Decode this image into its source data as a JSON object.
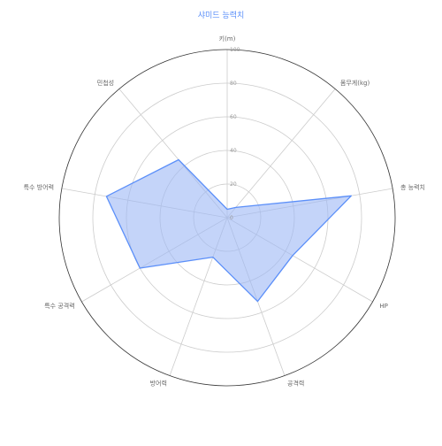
{
  "chart_data": {
    "type": "radar",
    "title": "샤미드 능력치",
    "axes": [
      "키(m)",
      "몸무게(kg)",
      "총 능력치",
      "HP",
      "공격력",
      "방어력",
      "특수 공격력",
      "특수 방어력",
      "민첩성"
    ],
    "series": [
      {
        "name": "",
        "values": [
          5,
          8,
          75,
          45,
          53,
          25,
          60,
          73,
          45
        ]
      }
    ],
    "rlim": [
      0,
      100
    ],
    "rticks": [
      0,
      20,
      40,
      60,
      80,
      100
    ],
    "colors": {
      "fill": "#9db7f5",
      "stroke": "#5b8ff9",
      "grid": "#cccccc",
      "outer": "#333333"
    },
    "grid": true,
    "legend": "none"
  }
}
